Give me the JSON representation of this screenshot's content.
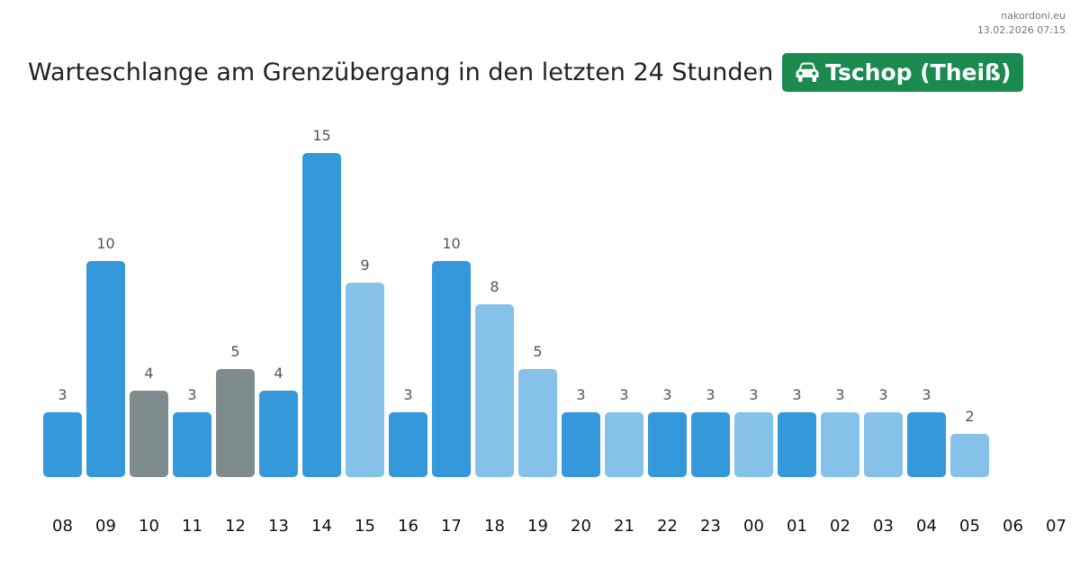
{
  "source": {
    "site": "nakordoni.eu",
    "datetime": "13.02.2026 07:15"
  },
  "header": {
    "title": "Warteschlange am Grenzübergang in den letzten 24 Stunden",
    "badge_label": "Tschop (Theiß)",
    "badge_icon": "car-icon",
    "badge_color": "#1a8a4e"
  },
  "chart_data": {
    "type": "bar",
    "title": "Warteschlange am Grenzübergang in den letzten 24 Stunden",
    "xlabel": "",
    "ylabel": "",
    "grid": false,
    "ylim": [
      0,
      15
    ],
    "categories": [
      "08",
      "09",
      "10",
      "11",
      "12",
      "13",
      "14",
      "15",
      "16",
      "17",
      "18",
      "19",
      "20",
      "21",
      "22",
      "23",
      "00",
      "01",
      "02",
      "03",
      "04",
      "05",
      "06",
      "07"
    ],
    "values": [
      3,
      10,
      4,
      3,
      5,
      4,
      15,
      9,
      3,
      10,
      8,
      5,
      3,
      3,
      3,
      3,
      3,
      3,
      3,
      3,
      3,
      2,
      null,
      null
    ],
    "colors": [
      "#3498db",
      "#3498db",
      "#7f8c8d",
      "#3498db",
      "#7f8c8d",
      "#3498db",
      "#3498db",
      "#85c1e9",
      "#3498db",
      "#3498db",
      "#85c1e9",
      "#85c1e9",
      "#3498db",
      "#85c1e9",
      "#3498db",
      "#3498db",
      "#85c1e9",
      "#3498db",
      "#85c1e9",
      "#85c1e9",
      "#3498db",
      "#85c1e9",
      null,
      null
    ]
  }
}
